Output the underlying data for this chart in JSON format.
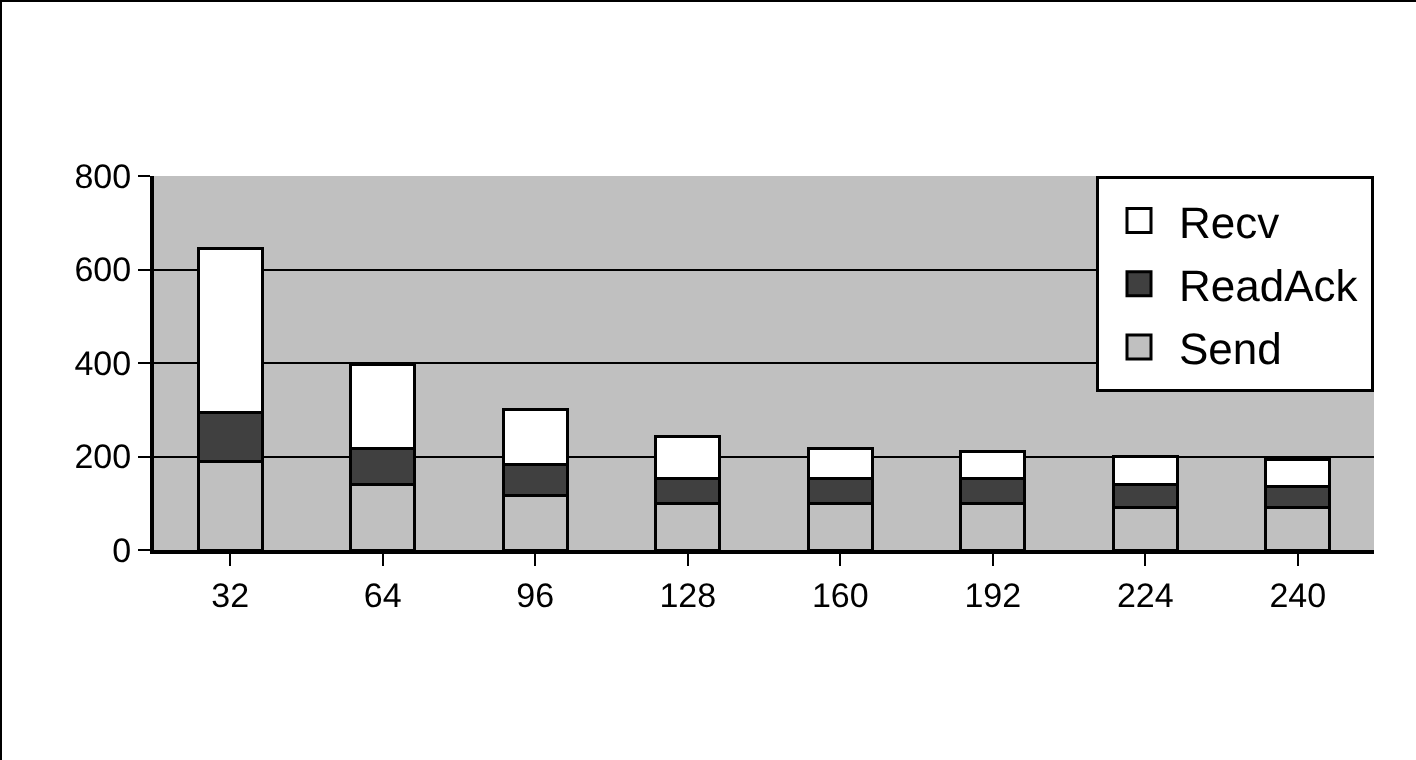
{
  "chart_data": {
    "type": "bar",
    "stacked": true,
    "categories": [
      "32",
      "64",
      "96",
      "128",
      "160",
      "192",
      "224",
      "240"
    ],
    "series": [
      {
        "name": "Send",
        "color": "#c0c0c0",
        "values": [
          190,
          140,
          117,
          100,
          100,
          100,
          90,
          90
        ]
      },
      {
        "name": "ReadAck",
        "color": "#404040",
        "values": [
          105,
          78,
          65,
          52,
          52,
          52,
          51,
          45
        ]
      },
      {
        "name": "Recv",
        "color": "#ffffff",
        "values": [
          350,
          178,
          119,
          90,
          65,
          59,
          59,
          59
        ]
      }
    ],
    "ylim": [
      0,
      800
    ],
    "yticks": [
      0,
      200,
      400,
      600,
      800
    ],
    "grid": "y",
    "legend": "top right"
  }
}
